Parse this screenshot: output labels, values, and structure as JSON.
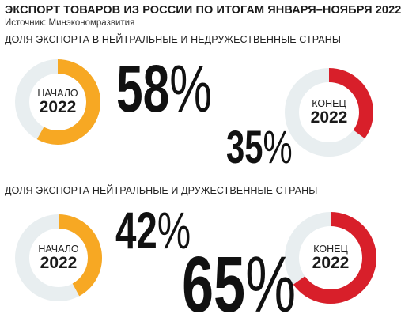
{
  "title": "ЭКСПОРТ ТОВАРОВ ИЗ РОССИИ ПО ИТОГАМ ЯНВАРЯ–НОЯБРЯ 2022",
  "source": "Источник: Минэкономразвития",
  "colors": {
    "track": "#e8eef0",
    "start": "#f7a823",
    "end": "#d81f2a"
  },
  "chart_data": [
    {
      "type": "pie",
      "title": "ДОЛЯ ЭКСПОРТА В НЕЙТРАЛЬНЫЕ И НЕДРУЖЕСТВЕННЫЕ СТРАНЫ",
      "series": [
        {
          "caption": "НАЧАЛО",
          "year": "2022",
          "value": 58,
          "label": "58%",
          "color": "#f7a823"
        },
        {
          "caption": "КОНЕЦ",
          "year": "2022",
          "value": 35,
          "label": "35%",
          "color": "#d81f2a"
        }
      ]
    },
    {
      "type": "pie",
      "title": "ДОЛЯ ЭКСПОРТА НЕЙТРАЛЬНЫЕ И ДРУЖЕСТВЕННЫЕ СТРАНЫ",
      "series": [
        {
          "caption": "НАЧАЛО",
          "year": "2022",
          "value": 42,
          "label": "42%",
          "color": "#f7a823"
        },
        {
          "caption": "КОНЕЦ",
          "year": "2022",
          "value": 65,
          "label": "65%",
          "color": "#d81f2a"
        }
      ]
    }
  ]
}
